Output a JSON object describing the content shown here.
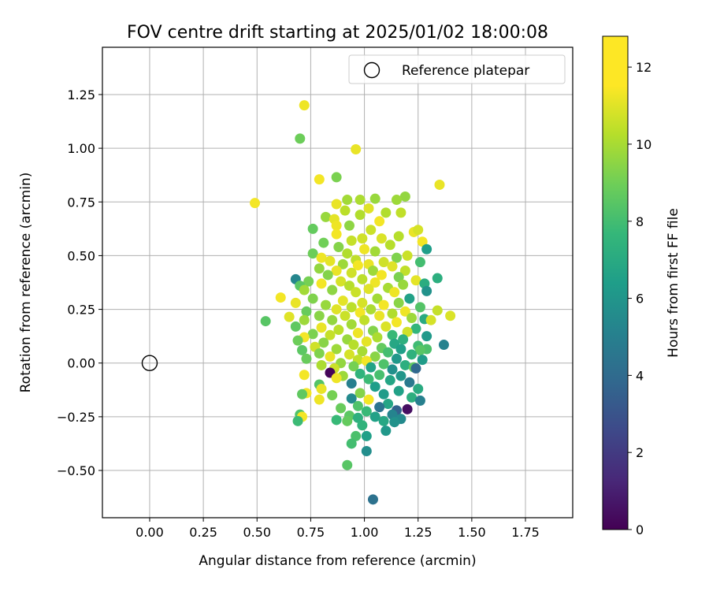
{
  "chart_data": {
    "type": "scatter",
    "title": "FOV centre drift starting at 2025/01/02 18:00:08",
    "xlabel": "Angular distance from reference (arcmin)",
    "ylabel": "Rotation from reference (arcmin)",
    "xlim": [
      -0.22,
      1.97
    ],
    "ylim": [
      -0.72,
      1.47
    ],
    "xticks": [
      0.0,
      0.25,
      0.5,
      0.75,
      1.0,
      1.25,
      1.5,
      1.75
    ],
    "xtick_labels": [
      "0.00",
      "0.25",
      "0.50",
      "0.75",
      "1.00",
      "1.25",
      "1.50",
      "1.75"
    ],
    "yticks": [
      -0.5,
      -0.25,
      0.0,
      0.25,
      0.5,
      0.75,
      1.0,
      1.25
    ],
    "ytick_labels": [
      "−0.50",
      "−0.25",
      "0.00",
      "0.25",
      "0.50",
      "0.75",
      "1.00",
      "1.25"
    ],
    "grid": true,
    "legend": {
      "placement": "upper-right",
      "entries": [
        {
          "label": "Reference platepar",
          "marker": "open-circle"
        }
      ]
    },
    "reference": {
      "x": 0.0,
      "y": 0.0
    },
    "colorbar": {
      "label": "Hours from first FF file",
      "min": 0,
      "max": 12.8,
      "ticks": [
        0,
        2,
        4,
        6,
        8,
        10,
        12
      ],
      "colormap": "viridis"
    },
    "series": [
      {
        "color_by": "hours",
        "points": [
          [
            0.49,
            0.745,
            12.6
          ],
          [
            0.72,
            1.2,
            12.5
          ],
          [
            0.7,
            1.045,
            9.9
          ],
          [
            0.96,
            0.995,
            12.4
          ],
          [
            0.79,
            0.855,
            12.6
          ],
          [
            0.87,
            0.865,
            10.2
          ],
          [
            1.35,
            0.83,
            12.4
          ],
          [
            1.19,
            0.775,
            10.7
          ],
          [
            1.05,
            0.765,
            10.8
          ],
          [
            0.98,
            0.76,
            11.2
          ],
          [
            0.92,
            0.76,
            11.0
          ],
          [
            1.15,
            0.76,
            10.9
          ],
          [
            0.87,
            0.74,
            12.4
          ],
          [
            1.02,
            0.72,
            12.2
          ],
          [
            0.91,
            0.71,
            11.5
          ],
          [
            1.1,
            0.7,
            11.3
          ],
          [
            1.17,
            0.7,
            11.6
          ],
          [
            0.98,
            0.69,
            11.3
          ],
          [
            0.82,
            0.68,
            10.8
          ],
          [
            0.86,
            0.67,
            12.3
          ],
          [
            1.07,
            0.66,
            12.6
          ],
          [
            0.87,
            0.64,
            12.5
          ],
          [
            0.93,
            0.64,
            10.6
          ],
          [
            1.23,
            0.61,
            12.4
          ],
          [
            1.25,
            0.62,
            12.0
          ],
          [
            0.76,
            0.625,
            9.7
          ],
          [
            1.03,
            0.62,
            11.8
          ],
          [
            0.87,
            0.6,
            12.6
          ],
          [
            1.16,
            0.59,
            11.4
          ],
          [
            0.99,
            0.58,
            11.9
          ],
          [
            1.08,
            0.58,
            12.1
          ],
          [
            0.81,
            0.56,
            10.0
          ],
          [
            1.27,
            0.565,
            12.6
          ],
          [
            0.94,
            0.57,
            11.7
          ],
          [
            1.12,
            0.55,
            11.4
          ],
          [
            0.88,
            0.54,
            10.4
          ],
          [
            1.29,
            0.53,
            7.1
          ],
          [
            1.0,
            0.53,
            12.5
          ],
          [
            1.05,
            0.52,
            11.0
          ],
          [
            0.76,
            0.51,
            9.9
          ],
          [
            0.92,
            0.51,
            11.3
          ],
          [
            1.2,
            0.5,
            11.8
          ],
          [
            0.8,
            0.49,
            12.5
          ],
          [
            1.15,
            0.49,
            10.3
          ],
          [
            0.96,
            0.48,
            11.6
          ],
          [
            0.84,
            0.475,
            12.3
          ],
          [
            1.09,
            0.47,
            11.9
          ],
          [
            0.9,
            0.46,
            10.9
          ],
          [
            1.02,
            0.46,
            12.4
          ],
          [
            0.97,
            0.455,
            12.6
          ],
          [
            1.26,
            0.47,
            8.9
          ],
          [
            0.79,
            0.44,
            10.7
          ],
          [
            1.13,
            0.45,
            12.2
          ],
          [
            0.87,
            0.43,
            12.4
          ],
          [
            1.04,
            0.43,
            10.9
          ],
          [
            1.19,
            0.43,
            11.6
          ],
          [
            0.94,
            0.42,
            11.9
          ],
          [
            0.83,
            0.41,
            10.4
          ],
          [
            1.08,
            0.41,
            12.6
          ],
          [
            1.16,
            0.4,
            10.2
          ],
          [
            1.34,
            0.395,
            8.0
          ],
          [
            1.24,
            0.385,
            12.3
          ],
          [
            0.99,
            0.39,
            11.5
          ],
          [
            0.74,
            0.38,
            10.1
          ],
          [
            0.89,
            0.38,
            12.0
          ],
          [
            1.05,
            0.375,
            12.5
          ],
          [
            0.68,
            0.39,
            5.9
          ],
          [
            0.7,
            0.36,
            9.5
          ],
          [
            1.18,
            0.365,
            10.8
          ],
          [
            1.28,
            0.37,
            7.9
          ],
          [
            0.8,
            0.37,
            12.6
          ],
          [
            0.93,
            0.36,
            11.4
          ],
          [
            1.11,
            0.35,
            11.1
          ],
          [
            1.02,
            0.345,
            12.2
          ],
          [
            0.72,
            0.34,
            11.0
          ],
          [
            0.85,
            0.34,
            10.6
          ],
          [
            1.29,
            0.335,
            6.5
          ],
          [
            1.14,
            0.33,
            12.5
          ],
          [
            0.96,
            0.33,
            11.8
          ],
          [
            0.61,
            0.305,
            12.6
          ],
          [
            1.21,
            0.3,
            7.3
          ],
          [
            0.76,
            0.3,
            10.3
          ],
          [
            1.06,
            0.3,
            11.0
          ],
          [
            0.9,
            0.29,
            12.3
          ],
          [
            0.68,
            0.28,
            12.4
          ],
          [
            0.99,
            0.28,
            12.0
          ],
          [
            1.16,
            0.28,
            10.5
          ],
          [
            0.82,
            0.27,
            10.8
          ],
          [
            1.09,
            0.27,
            12.6
          ],
          [
            0.94,
            0.26,
            11.5
          ],
          [
            1.26,
            0.26,
            9.3
          ],
          [
            0.87,
            0.25,
            12.2
          ],
          [
            1.03,
            0.25,
            11.2
          ],
          [
            1.34,
            0.245,
            11.7
          ],
          [
            0.73,
            0.24,
            9.8
          ],
          [
            1.19,
            0.24,
            12.5
          ],
          [
            0.98,
            0.235,
            12.6
          ],
          [
            1.13,
            0.23,
            11.3
          ],
          [
            1.4,
            0.22,
            12.1
          ],
          [
            0.79,
            0.22,
            10.5
          ],
          [
            0.91,
            0.22,
            11.8
          ],
          [
            1.07,
            0.22,
            12.4
          ],
          [
            1.22,
            0.21,
            10.9
          ],
          [
            0.65,
            0.215,
            12.2
          ],
          [
            1.28,
            0.205,
            7.8
          ],
          [
            0.54,
            0.195,
            9.4
          ],
          [
            1.31,
            0.2,
            12.0
          ],
          [
            0.85,
            0.2,
            10.7
          ],
          [
            1.0,
            0.2,
            11.6
          ],
          [
            0.72,
            0.2,
            10.9
          ],
          [
            1.15,
            0.19,
            12.6
          ],
          [
            0.94,
            0.18,
            11.0
          ],
          [
            0.68,
            0.17,
            9.6
          ],
          [
            1.1,
            0.17,
            12.1
          ],
          [
            0.8,
            0.165,
            12.4
          ],
          [
            1.24,
            0.16,
            8.4
          ],
          [
            0.88,
            0.155,
            11.5
          ],
          [
            1.04,
            0.15,
            10.4
          ],
          [
            1.2,
            0.145,
            11.9
          ],
          [
            0.97,
            0.14,
            12.5
          ],
          [
            0.76,
            0.135,
            10.2
          ],
          [
            1.13,
            0.13,
            8.6
          ],
          [
            1.29,
            0.125,
            6.9
          ],
          [
            0.84,
            0.13,
            11.7
          ],
          [
            0.72,
            0.12,
            12.6
          ],
          [
            1.06,
            0.12,
            11.2
          ],
          [
            0.92,
            0.11,
            10.8
          ],
          [
            1.18,
            0.11,
            8.1
          ],
          [
            0.69,
            0.105,
            9.9
          ],
          [
            1.01,
            0.1,
            12.3
          ],
          [
            0.81,
            0.095,
            10.5
          ],
          [
            1.14,
            0.09,
            7.6
          ],
          [
            1.37,
            0.085,
            5.7
          ],
          [
            0.95,
            0.085,
            11.4
          ],
          [
            1.25,
            0.08,
            8.8
          ],
          [
            0.77,
            0.075,
            11.9
          ],
          [
            1.08,
            0.07,
            9.7
          ],
          [
            0.87,
            0.065,
            10.9
          ],
          [
            1.17,
            0.065,
            7.2
          ],
          [
            1.29,
            0.065,
            9.1
          ],
          [
            1.26,
            0.06,
            9.4
          ],
          [
            0.71,
            0.06,
            9.5
          ],
          [
            0.99,
            0.055,
            11.1
          ],
          [
            1.11,
            0.05,
            8.9
          ],
          [
            0.79,
            0.045,
            10.3
          ],
          [
            0.93,
            0.04,
            12.0
          ],
          [
            1.22,
            0.04,
            8.2
          ],
          [
            1.05,
            0.03,
            10.5
          ],
          [
            0.84,
            0.03,
            12.4
          ],
          [
            0.73,
            0.02,
            9.8
          ],
          [
            1.15,
            0.02,
            6.8
          ],
          [
            0.97,
            0.015,
            11.6
          ],
          [
            1.01,
            0.01,
            12.6
          ],
          [
            1.27,
            0.015,
            7.0
          ],
          [
            0.89,
            0.0,
            10.7
          ],
          [
            1.09,
            -0.005,
            9.2
          ],
          [
            0.8,
            -0.01,
            11.2
          ],
          [
            1.19,
            -0.01,
            8.0
          ],
          [
            0.95,
            -0.015,
            10.1
          ],
          [
            1.23,
            -0.02,
            9.6
          ],
          [
            1.03,
            -0.02,
            7.4
          ],
          [
            0.86,
            -0.025,
            11.8
          ],
          [
            1.13,
            -0.03,
            6.4
          ],
          [
            1.24,
            -0.025,
            4.3
          ],
          [
            0.72,
            -0.055,
            12.6
          ],
          [
            0.84,
            -0.045,
            0.2
          ],
          [
            0.98,
            -0.05,
            8.3
          ],
          [
            1.07,
            -0.055,
            9.0
          ],
          [
            0.9,
            -0.06,
            10.9
          ],
          [
            1.17,
            -0.06,
            6.7
          ],
          [
            0.87,
            -0.07,
            12.5
          ],
          [
            1.02,
            -0.075,
            8.7
          ],
          [
            1.12,
            -0.08,
            7.5
          ],
          [
            0.79,
            -0.1,
            9.3
          ],
          [
            0.94,
            -0.095,
            5.5
          ],
          [
            1.21,
            -0.09,
            5.2
          ],
          [
            0.73,
            -0.14,
            12.6
          ],
          [
            1.05,
            -0.11,
            7.1
          ],
          [
            0.8,
            -0.12,
            12.4
          ],
          [
            1.25,
            -0.12,
            7.8
          ],
          [
            0.71,
            -0.145,
            9.6
          ],
          [
            1.16,
            -0.13,
            7.3
          ],
          [
            0.98,
            -0.14,
            10.4
          ],
          [
            1.09,
            -0.145,
            7.0
          ],
          [
            0.85,
            -0.15,
            10.1
          ],
          [
            1.22,
            -0.16,
            8.0
          ],
          [
            0.79,
            -0.17,
            12.5
          ],
          [
            1.02,
            -0.17,
            12.6
          ],
          [
            0.94,
            -0.165,
            6.1
          ],
          [
            1.26,
            -0.175,
            5.6
          ],
          [
            1.11,
            -0.19,
            7.5
          ],
          [
            0.97,
            -0.2,
            9.2
          ],
          [
            1.07,
            -0.205,
            4.9
          ],
          [
            1.2,
            -0.215,
            0.5
          ],
          [
            0.89,
            -0.21,
            9.8
          ],
          [
            1.15,
            -0.22,
            4.0
          ],
          [
            0.7,
            -0.24,
            9.2
          ],
          [
            1.01,
            -0.225,
            8.6
          ],
          [
            0.71,
            -0.25,
            12.6
          ],
          [
            1.13,
            -0.24,
            5.8
          ],
          [
            0.93,
            -0.245,
            9.5
          ],
          [
            1.05,
            -0.25,
            7.3
          ],
          [
            0.97,
            -0.255,
            8.1
          ],
          [
            1.17,
            -0.26,
            6.1
          ],
          [
            0.69,
            -0.27,
            8.7
          ],
          [
            0.87,
            -0.265,
            8.6
          ],
          [
            0.92,
            -0.27,
            9.7
          ],
          [
            1.09,
            -0.27,
            7.6
          ],
          [
            1.14,
            -0.275,
            6.5
          ],
          [
            0.99,
            -0.29,
            8.3
          ],
          [
            1.1,
            -0.315,
            6.8
          ],
          [
            0.96,
            -0.34,
            9.1
          ],
          [
            1.01,
            -0.34,
            7.2
          ],
          [
            0.94,
            -0.375,
            8.9
          ],
          [
            1.01,
            -0.41,
            6.3
          ],
          [
            0.92,
            -0.475,
            9.4
          ],
          [
            1.04,
            -0.635,
            4.8
          ]
        ]
      }
    ]
  }
}
